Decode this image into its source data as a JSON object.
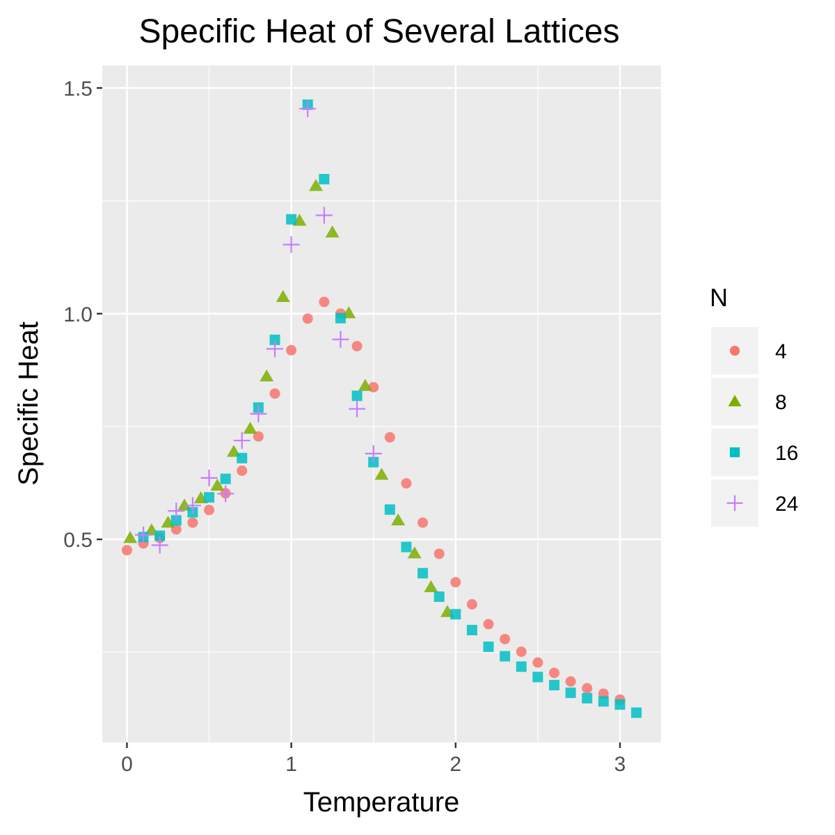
{
  "chart_data": {
    "type": "scatter",
    "title": "Specific Heat of Several Lattices",
    "xlabel": "Temperature",
    "ylabel": "Specific Heat",
    "xlim": [
      -0.15,
      3.25
    ],
    "ylim": [
      0.05,
      1.55
    ],
    "x_ticks": [
      0,
      1,
      2,
      3
    ],
    "x_tick_labels": [
      "0",
      "1",
      "2",
      "3"
    ],
    "y_ticks": [
      0.5,
      1.0,
      1.5
    ],
    "y_tick_labels": [
      "0.5",
      "1.0",
      "1.5"
    ],
    "y_minor_ticks": [
      0.25,
      0.75,
      1.25
    ],
    "x_minor_ticks": [
      0.5,
      1.5,
      2.5
    ],
    "grid": true,
    "panel_background": "#ebebeb",
    "legend": {
      "title": "N",
      "position": "right",
      "entries": [
        "4",
        "8",
        "16",
        "24"
      ]
    },
    "series": [
      {
        "name": "4",
        "shape": "circle",
        "color": "#f8766d",
        "points": [
          [
            0.0,
            0.476
          ],
          [
            0.1,
            0.491
          ],
          [
            0.2,
            0.503
          ],
          [
            0.3,
            0.522
          ],
          [
            0.4,
            0.537
          ],
          [
            0.5,
            0.565
          ],
          [
            0.6,
            0.602
          ],
          [
            0.7,
            0.652
          ],
          [
            0.8,
            0.728
          ],
          [
            0.9,
            0.823
          ],
          [
            1.0,
            0.919
          ],
          [
            1.1,
            0.989
          ],
          [
            1.2,
            1.026
          ],
          [
            1.3,
            1.0
          ],
          [
            1.4,
            0.928
          ],
          [
            1.5,
            0.837
          ],
          [
            1.6,
            0.726
          ],
          [
            1.7,
            0.624
          ],
          [
            1.8,
            0.537
          ],
          [
            1.9,
            0.468
          ],
          [
            2.0,
            0.405
          ],
          [
            2.1,
            0.356
          ],
          [
            2.2,
            0.312
          ],
          [
            2.3,
            0.279
          ],
          [
            2.4,
            0.251
          ],
          [
            2.5,
            0.227
          ],
          [
            2.6,
            0.204
          ],
          [
            2.7,
            0.185
          ],
          [
            2.8,
            0.17
          ],
          [
            2.9,
            0.158
          ],
          [
            3.0,
            0.145
          ]
        ]
      },
      {
        "name": "8",
        "shape": "triangle",
        "color": "#7cae00",
        "points": [
          [
            0.02,
            0.503
          ],
          [
            0.15,
            0.52
          ],
          [
            0.25,
            0.537
          ],
          [
            0.35,
            0.575
          ],
          [
            0.45,
            0.591
          ],
          [
            0.55,
            0.619
          ],
          [
            0.65,
            0.694
          ],
          [
            0.75,
            0.745
          ],
          [
            0.85,
            0.861
          ],
          [
            0.95,
            1.037
          ],
          [
            1.05,
            1.206
          ],
          [
            1.15,
            1.283
          ],
          [
            1.25,
            1.18
          ],
          [
            1.35,
            1.001
          ],
          [
            1.45,
            0.84
          ],
          [
            1.55,
            0.643
          ],
          [
            1.65,
            0.542
          ],
          [
            1.75,
            0.469
          ],
          [
            1.85,
            0.394
          ],
          [
            1.95,
            0.339
          ]
        ]
      },
      {
        "name": "16",
        "shape": "square",
        "color": "#00bfc4",
        "points": [
          [
            0.1,
            0.505
          ],
          [
            0.2,
            0.508
          ],
          [
            0.3,
            0.542
          ],
          [
            0.4,
            0.56
          ],
          [
            0.5,
            0.593
          ],
          [
            0.6,
            0.634
          ],
          [
            0.7,
            0.68
          ],
          [
            0.8,
            0.792
          ],
          [
            0.9,
            0.942
          ],
          [
            1.0,
            1.209
          ],
          [
            1.1,
            1.463
          ],
          [
            1.2,
            1.298
          ],
          [
            1.3,
            0.99
          ],
          [
            1.4,
            0.818
          ],
          [
            1.5,
            0.671
          ],
          [
            1.6,
            0.566
          ],
          [
            1.7,
            0.483
          ],
          [
            1.8,
            0.425
          ],
          [
            1.9,
            0.373
          ],
          [
            2.0,
            0.334
          ],
          [
            2.1,
            0.299
          ],
          [
            2.2,
            0.262
          ],
          [
            2.3,
            0.241
          ],
          [
            2.4,
            0.218
          ],
          [
            2.5,
            0.195
          ],
          [
            2.6,
            0.177
          ],
          [
            2.7,
            0.16
          ],
          [
            2.8,
            0.148
          ],
          [
            2.9,
            0.141
          ],
          [
            3.0,
            0.134
          ],
          [
            3.1,
            0.116
          ]
        ]
      },
      {
        "name": "24",
        "shape": "plus",
        "color": "#c77cff",
        "points": [
          [
            0.1,
            0.51
          ],
          [
            0.2,
            0.487
          ],
          [
            0.3,
            0.563
          ],
          [
            0.4,
            0.575
          ],
          [
            0.5,
            0.636
          ],
          [
            0.6,
            0.601
          ],
          [
            0.7,
            0.719
          ],
          [
            0.8,
            0.778
          ],
          [
            0.9,
            0.922
          ],
          [
            1.0,
            1.153
          ],
          [
            1.1,
            1.454
          ],
          [
            1.2,
            1.218
          ],
          [
            1.3,
            0.943
          ],
          [
            1.4,
            0.789
          ],
          [
            1.5,
            0.69
          ]
        ]
      }
    ]
  }
}
